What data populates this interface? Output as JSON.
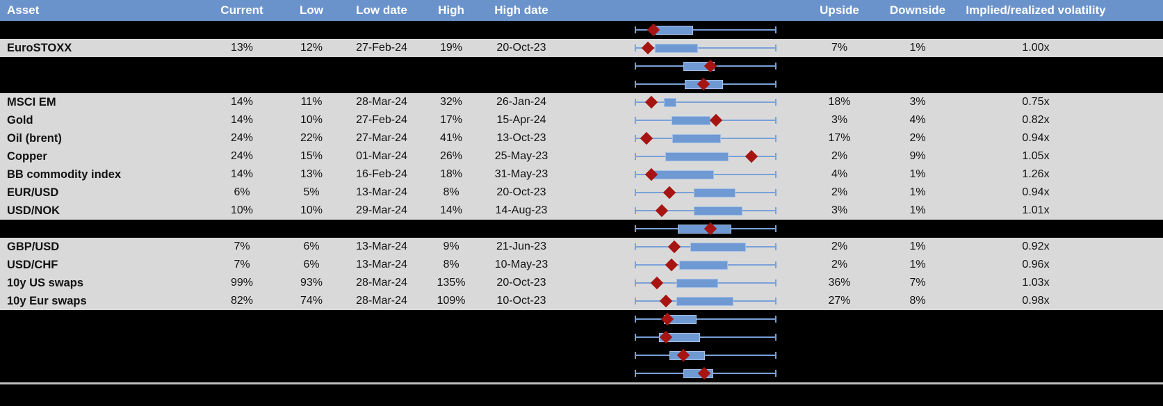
{
  "app": {
    "description": "Implied volatility overview table with inline range box plots"
  },
  "colors": {
    "header_bg": "#6b93cb",
    "header_text": "#ffffff",
    "row_gray": "#d9d9d9",
    "row_black": "#000000",
    "box_fill": "#6f99d3",
    "box_border": "#a3c0e5",
    "whisker_blue": "#79a1d9",
    "marker_red": "#a61511",
    "divider_gray": "#bfbfbf"
  },
  "header": {
    "columns": [
      {
        "key": "asset",
        "label": "Asset"
      },
      {
        "key": "current",
        "label": "Current"
      },
      {
        "key": "low",
        "label": "Low"
      },
      {
        "key": "low_date",
        "label": "Low date"
      },
      {
        "key": "high",
        "label": "High"
      },
      {
        "key": "high_date",
        "label": "High date"
      },
      {
        "key": "range_chart",
        "label": ""
      },
      {
        "key": "upside",
        "label": "Upside"
      },
      {
        "key": "downside",
        "label": "Downside"
      },
      {
        "key": "irv",
        "label": "Implied/realized volatility"
      }
    ]
  },
  "rows": [
    {
      "bg": "black",
      "label": "",
      "current": "",
      "low": "",
      "low_date": "",
      "high": "",
      "high_date": "",
      "upside": "",
      "downside": "",
      "irv": "",
      "plot": {
        "box_start": 14.7,
        "box_end": 41.2,
        "marker": 13.2
      }
    },
    {
      "bg": "gray",
      "label": "EuroSTOXX",
      "current": "13%",
      "low": "12%",
      "low_date": "27-Feb-24",
      "high": "19%",
      "high_date": "20-Oct-23",
      "upside": "7%",
      "downside": "1%",
      "irv": "1.00x",
      "plot": {
        "box_start": 14.2,
        "box_end": 44.6,
        "marker": 9.3
      }
    },
    {
      "bg": "black",
      "label": "",
      "current": "",
      "low": "",
      "low_date": "",
      "high": "",
      "high_date": "",
      "upside": "",
      "downside": "",
      "irv": "",
      "plot": {
        "box_start": 34.3,
        "box_end": 56.4,
        "marker": 53.4
      }
    },
    {
      "bg": "black",
      "label": "",
      "current": "",
      "low": "",
      "low_date": "",
      "high": "",
      "high_date": "",
      "upside": "",
      "downside": "",
      "irv": "",
      "plot": {
        "box_start": 35.3,
        "box_end": 62.3,
        "marker": 48.5
      }
    },
    {
      "bg": "gray",
      "label": "MSCI EM",
      "current": "14%",
      "low": "11%",
      "low_date": "28-Mar-24",
      "high": "32%",
      "high_date": "26-Jan-24",
      "upside": "18%",
      "downside": "3%",
      "irv": "0.75x",
      "plot": {
        "box_start": 20.6,
        "box_end": 29.4,
        "marker": 11.8
      }
    },
    {
      "bg": "gray",
      "label": "Gold",
      "current": "14%",
      "low": "10%",
      "low_date": "27-Feb-24",
      "high": "17%",
      "high_date": "15-Apr-24",
      "upside": "3%",
      "downside": "4%",
      "irv": "0.82x",
      "plot": {
        "box_start": 26.0,
        "box_end": 53.4,
        "marker": 57.4
      }
    },
    {
      "bg": "gray",
      "label": "Oil (brent)",
      "current": "24%",
      "low": "22%",
      "low_date": "27-Mar-24",
      "high": "41%",
      "high_date": "13-Oct-23",
      "upside": "17%",
      "downside": "2%",
      "irv": "0.94x",
      "plot": {
        "box_start": 26.5,
        "box_end": 60.8,
        "marker": 8.3
      }
    },
    {
      "bg": "gray",
      "label": "Copper",
      "current": "24%",
      "low": "15%",
      "low_date": "01-Mar-24",
      "high": "26%",
      "high_date": "25-May-23",
      "upside": "2%",
      "downside": "9%",
      "irv": "1.05x",
      "plot": {
        "box_start": 21.6,
        "box_end": 66.2,
        "marker": 82.4
      }
    },
    {
      "bg": "gray",
      "label": "BB commodity index",
      "current": "14%",
      "low": "13%",
      "low_date": "16-Feb-24",
      "high": "18%",
      "high_date": "31-May-23",
      "upside": "4%",
      "downside": "1%",
      "irv": "1.26x",
      "plot": {
        "box_start": 13.2,
        "box_end": 55.9,
        "marker": 11.8
      }
    },
    {
      "bg": "gray",
      "label": "EUR/USD",
      "current": "6%",
      "low": "5%",
      "low_date": "13-Mar-24",
      "high": "8%",
      "high_date": "20-Oct-23",
      "upside": "2%",
      "downside": "1%",
      "irv": "0.94x",
      "plot": {
        "box_start": 41.7,
        "box_end": 71.1,
        "marker": 24.5
      }
    },
    {
      "bg": "gray",
      "label": "USD/NOK",
      "current": "10%",
      "low": "10%",
      "low_date": "29-Mar-24",
      "high": "14%",
      "high_date": "14-Aug-23",
      "upside": "3%",
      "downside": "1%",
      "irv": "1.01x",
      "plot": {
        "box_start": 41.7,
        "box_end": 76.0,
        "marker": 19.1
      }
    },
    {
      "bg": "black",
      "label": "",
      "current": "",
      "low": "",
      "low_date": "",
      "high": "",
      "high_date": "",
      "upside": "",
      "downside": "",
      "irv": "",
      "plot": {
        "box_start": 30.4,
        "box_end": 68.1,
        "marker": 53.4
      }
    },
    {
      "bg": "gray",
      "label": "GBP/USD",
      "current": "7%",
      "low": "6%",
      "low_date": "13-Mar-24",
      "high": "9%",
      "high_date": "21-Jun-23",
      "upside": "2%",
      "downside": "1%",
      "irv": "0.92x",
      "plot": {
        "box_start": 39.2,
        "box_end": 78.4,
        "marker": 27.9
      }
    },
    {
      "bg": "gray",
      "label": "USD/CHF",
      "current": "7%",
      "low": "6%",
      "low_date": "13-Mar-24",
      "high": "8%",
      "high_date": "10-May-23",
      "upside": "2%",
      "downside": "1%",
      "irv": "0.96x",
      "plot": {
        "box_start": 31.4,
        "box_end": 65.7,
        "marker": 26.0
      }
    },
    {
      "bg": "gray",
      "label": "10y US swaps",
      "current": "99%",
      "low": "93%",
      "low_date": "28-Mar-24",
      "high": "135%",
      "high_date": "20-Oct-23",
      "upside": "36%",
      "downside": "7%",
      "irv": "1.03x",
      "plot": {
        "box_start": 29.4,
        "box_end": 58.8,
        "marker": 15.7
      }
    },
    {
      "bg": "gray",
      "label": "10y Eur swaps",
      "current": "82%",
      "low": "74%",
      "low_date": "28-Mar-24",
      "high": "109%",
      "high_date": "10-Oct-23",
      "upside": "27%",
      "downside": "8%",
      "irv": "0.98x",
      "plot": {
        "box_start": 29.4,
        "box_end": 69.6,
        "marker": 22.1
      }
    },
    {
      "bg": "black",
      "label": "",
      "current": "",
      "low": "",
      "low_date": "",
      "high": "",
      "high_date": "",
      "upside": "",
      "downside": "",
      "irv": "",
      "plot": {
        "box_start": 20.6,
        "box_end": 43.6,
        "marker": 23.0
      }
    },
    {
      "bg": "black",
      "label": "",
      "current": "",
      "low": "",
      "low_date": "",
      "high": "",
      "high_date": "",
      "upside": "",
      "downside": "",
      "irv": "",
      "plot": {
        "box_start": 17.2,
        "box_end": 46.1,
        "marker": 22.1
      }
    },
    {
      "bg": "black",
      "label": "",
      "current": "",
      "low": "",
      "low_date": "",
      "high": "",
      "high_date": "",
      "upside": "",
      "downside": "",
      "irv": "",
      "plot": {
        "box_start": 24.5,
        "box_end": 49.5,
        "marker": 34.3
      }
    },
    {
      "bg": "black",
      "label": "",
      "current": "",
      "low": "",
      "low_date": "",
      "high": "",
      "high_date": "",
      "upside": "",
      "downside": "",
      "irv": "",
      "plot": {
        "box_start": 34.3,
        "box_end": 55.4,
        "marker": 49.0
      }
    }
  ]
}
